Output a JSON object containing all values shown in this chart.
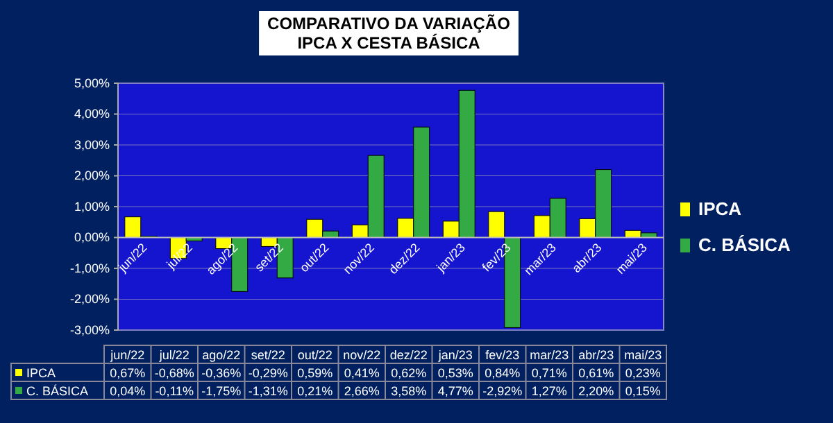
{
  "chart_data": {
    "type": "bar",
    "title": "COMPARATIVO DA VARIAÇÃO",
    "subtitle": "IPCA X CESTA BÁSICA",
    "categories": [
      "jun/22",
      "jul/22",
      "ago/22",
      "set/22",
      "out/22",
      "nov/22",
      "dez/22",
      "jan/23",
      "fev/23",
      "mar/23",
      "abr/23",
      "mai/23"
    ],
    "series": [
      {
        "name": "IPCA",
        "color": "#ffff00",
        "values": [
          0.67,
          -0.68,
          -0.36,
          -0.29,
          0.59,
          0.41,
          0.62,
          0.53,
          0.84,
          0.71,
          0.61,
          0.23
        ],
        "value_labels": [
          "0,67%",
          "-0,68%",
          "-0,36%",
          "-0,29%",
          "0,59%",
          "0,41%",
          "0,62%",
          "0,53%",
          "0,84%",
          "0,71%",
          "0,61%",
          "0,23%"
        ]
      },
      {
        "name": "C. BÁSICA",
        "color": "#33aa44",
        "values": [
          0.04,
          -0.11,
          -1.75,
          -1.31,
          0.21,
          2.66,
          3.58,
          4.77,
          -2.92,
          1.27,
          2.2,
          0.15
        ],
        "value_labels": [
          "0,04%",
          "-0,11%",
          "-1,75%",
          "-1,31%",
          "0,21%",
          "2,66%",
          "3,58%",
          "4,77%",
          "-2,92%",
          "1,27%",
          "2,20%",
          "0,15%"
        ]
      }
    ],
    "ylim": [
      -3,
      5
    ],
    "yticks": [
      {
        "value": -3,
        "label": "-3,00%"
      },
      {
        "value": -2,
        "label": "-2,00%"
      },
      {
        "value": -1,
        "label": "-1,00%"
      },
      {
        "value": 0,
        "label": "0,00%"
      },
      {
        "value": 1,
        "label": "1,00%"
      },
      {
        "value": 2,
        "label": "2,00%"
      },
      {
        "value": 3,
        "label": "3,00%"
      },
      {
        "value": 4,
        "label": "4,00%"
      },
      {
        "value": 5,
        "label": "5,00%"
      }
    ],
    "grid": "y",
    "legend": "right"
  }
}
